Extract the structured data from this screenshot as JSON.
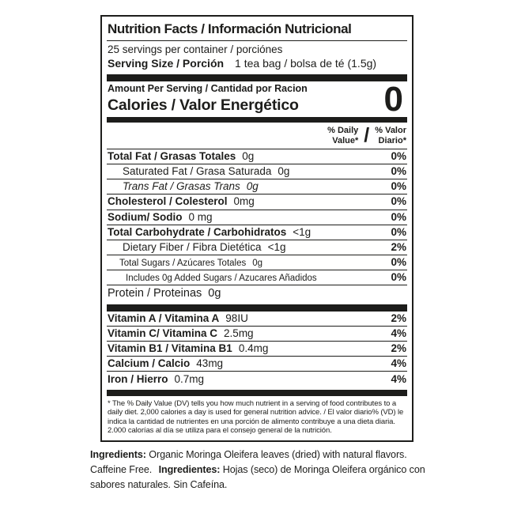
{
  "nutrition_label": {
    "title": "Nutrition Facts / Información Nutricional",
    "servings_line": "25 servings per container / porciónes",
    "serving_size": {
      "label": "Serving Size / Porción",
      "value": "1 tea bag / bolsa de té (1.5g)"
    },
    "amount_per_serving": "Amount Per Serving / Cantidad por Racion",
    "calories": {
      "label": "Calories / Valor Energético",
      "value": "0"
    },
    "daily_value_header": {
      "en_line1": "% Daily",
      "en_line2": "Value*",
      "slash": "/",
      "es_line1": "% Valor",
      "es_line2": "Diario*"
    },
    "nutrient_rows": [
      {
        "name": "Total Fat / Grasas Totales",
        "amount": "0g",
        "percent": "0%"
      },
      {
        "name": "Saturated Fat / Grasa Saturada",
        "amount": "0g",
        "percent": "0%"
      },
      {
        "name": "Trans Fat / Grasas Trans",
        "amount": "0g",
        "percent": "0%"
      },
      {
        "name": "Cholesterol / Colesterol",
        "amount": "0mg",
        "percent": "0%"
      },
      {
        "name": "Sodium/ Sodio",
        "amount": "0 mg",
        "percent": "0%"
      },
      {
        "name": "Total Carbohydrate / Carbohidratos",
        "amount": "<1g",
        "percent": "0%"
      },
      {
        "name": "Dietary Fiber / Fibra Dietética",
        "amount": "<1g",
        "percent": "2%"
      },
      {
        "name": "Total Sugars / Azúcares Totales",
        "amount": "0g",
        "percent": "0%"
      },
      {
        "name": "Includes 0g Added Sugars / Azucares Añadidos",
        "amount": "",
        "percent": "0%"
      },
      {
        "name": "Protein / Proteinas",
        "amount": "0g",
        "percent": ""
      }
    ],
    "vitamin_rows": [
      {
        "name": "Vitamin A / Vitamina A",
        "amount": "98IU",
        "percent": "2%"
      },
      {
        "name": "Vitamin C/ Vitamina C",
        "amount": "2.5mg",
        "percent": "4%"
      },
      {
        "name": "Vitamin B1 / Vitamina B1",
        "amount": "0.4mg",
        "percent": "2%"
      },
      {
        "name": "Calcium / Calcio",
        "amount": "43mg",
        "percent": "4%"
      },
      {
        "name": "Iron / Hierro",
        "amount": "0.7mg",
        "percent": "4%"
      }
    ],
    "footnote": "* The % Daily Value (DV) tells you how much nutrient in a serving of food contributes to a daily diet. 2,000 calories a day is used for general nutrition advice. / El valor diario% (VD) le indica la cantidad de nutrientes en una porción de alimento contribuye a una dieta diaria. 2.000 calorías al día se utiliza para el consejo general de la nutrición."
  },
  "ingredients": {
    "en_label": "Ingredients:",
    "en_text": "Organic Moringa Oleifera leaves (dried) with natural flavors. Caffeine Free.",
    "es_label": "Ingredientes:",
    "es_text": "Hojas (seco) de Moringa Oleifera orgánico con sabores naturales. Sin Cafeína."
  },
  "colors": {
    "text": "#1d1d1b",
    "background": "#ffffff"
  }
}
